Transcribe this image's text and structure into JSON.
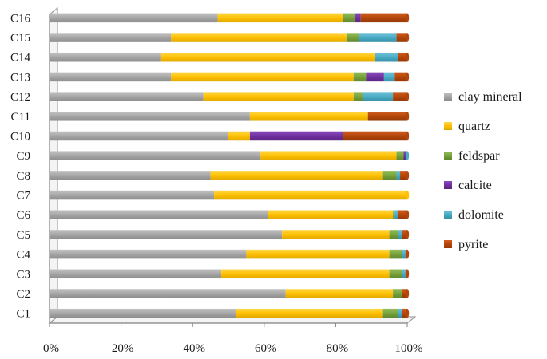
{
  "chart_data": {
    "type": "bar",
    "orientation": "horizontal",
    "stacked": true,
    "normalized_percent": true,
    "title": "",
    "xlabel": "",
    "ylabel": "",
    "xlim": [
      0,
      100
    ],
    "x_ticks": [
      "0%",
      "20%",
      "40%",
      "60%",
      "80%",
      "100%"
    ],
    "categories": [
      "C1",
      "C2",
      "C3",
      "C4",
      "C5",
      "C6",
      "C7",
      "C8",
      "C9",
      "C10",
      "C11",
      "C12",
      "C13",
      "C14",
      "C15",
      "C16"
    ],
    "series": [
      {
        "name": "clay mineral",
        "color": "#a6a6a6",
        "values": [
          52,
          66,
          48,
          55,
          65,
          61,
          46,
          45,
          59,
          50,
          56,
          43,
          34,
          31,
          34,
          47
        ]
      },
      {
        "name": "quartz",
        "color": "#ffc000",
        "values": [
          41,
          30,
          47,
          40,
          30,
          35,
          54,
          48,
          38,
          6,
          33,
          42,
          51,
          60,
          49,
          35
        ]
      },
      {
        "name": "feldspar",
        "color": "#77a33c",
        "values": [
          4.5,
          2.5,
          3.5,
          3.5,
          2.5,
          0.5,
          0,
          4,
          2,
          0,
          0,
          2.5,
          3.5,
          0,
          3.5,
          3.5
        ]
      },
      {
        "name": "calcite",
        "color": "#7030a0",
        "values": [
          0,
          0,
          0,
          0,
          0,
          0,
          0,
          0,
          0.6,
          26,
          0,
          0,
          5,
          0,
          0,
          1.5
        ]
      },
      {
        "name": "dolomite",
        "color": "#4bacc6",
        "values": [
          1,
          0,
          1,
          1,
          1,
          1,
          0,
          1,
          0.4,
          0,
          0,
          8.5,
          3,
          6.5,
          10.5,
          0
        ]
      },
      {
        "name": "pyrite",
        "color": "#b5460b",
        "values": [
          1.5,
          1.5,
          0.5,
          0.5,
          1.5,
          2.5,
          0,
          2,
          0,
          18,
          11,
          4,
          3.5,
          2.5,
          3,
          13
        ]
      }
    ],
    "legend_position": "right",
    "grid": false
  }
}
